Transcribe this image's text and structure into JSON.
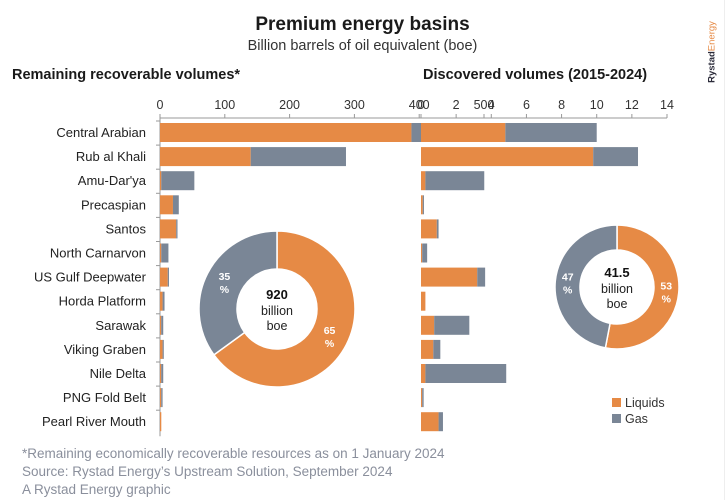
{
  "header": {
    "title": "Premium energy basins",
    "subtitle": "Billion barrels of oil equivalent (boe)",
    "brand_part1": "Rystad",
    "brand_part2": "Energy"
  },
  "colors": {
    "liquids": "#e68a45",
    "gas": "#7a8696",
    "axis": "#999999"
  },
  "footnotes": {
    "line1": "*Remaining economically recoverable resources as on 1 January 2024",
    "line2": "Source: Rystad Energy’s Upstream Solution, September 2024",
    "line3": "A Rystad Energy graphic"
  },
  "chart_data": [
    {
      "type": "bar",
      "orientation": "horizontal-stacked",
      "title": "Remaining recoverable volumes*",
      "xlabel": "",
      "ylabel": "",
      "xlim": [
        0,
        500
      ],
      "xticks": [
        0,
        100,
        200,
        300,
        400,
        500
      ],
      "categories": [
        "Central Arabian",
        "Rub al Khali",
        "Amu-Dar'ya",
        "Precaspian",
        "Santos",
        "North Carnarvon",
        "US Gulf Deepwater",
        "Horda Platform",
        "Sarawak",
        "Viking Graben",
        "Nile Delta",
        "PNG Fold Belt",
        "Pearl River Mouth"
      ],
      "series": [
        {
          "name": "Liquids",
          "values": [
            388,
            140,
            2,
            20,
            25,
            2,
            12,
            4,
            1,
            4,
            1,
            1,
            2
          ]
        },
        {
          "name": "Gas",
          "values": [
            73,
            147,
            51,
            9,
            2,
            11,
            1,
            3,
            4,
            1,
            4,
            3,
            0
          ]
        }
      ],
      "donut": {
        "total_value": "920",
        "total_line1": "billion",
        "total_line2": "boe",
        "slices": [
          {
            "name": "Liquids",
            "percent": 65,
            "label_num": "65",
            "label_sym": "%"
          },
          {
            "name": "Gas",
            "percent": 35,
            "label_num": "35",
            "label_sym": "%"
          }
        ]
      },
      "grid": false
    },
    {
      "type": "bar",
      "orientation": "horizontal-stacked",
      "title": "Discovered volumes (2015-2024)",
      "xlabel": "",
      "ylabel": "",
      "xlim": [
        0,
        14
      ],
      "xticks": [
        0,
        2,
        4,
        6,
        8,
        10,
        12,
        14
      ],
      "categories": [
        "Central Arabian",
        "Rub al Khali",
        "Amu-Dar'ya",
        "Precaspian",
        "Santos",
        "North Carnarvon",
        "US Gulf Deepwater",
        "Horda Platform",
        "Sarawak",
        "Viking Graben",
        "Nile Delta",
        "PNG Fold Belt",
        "Pearl River Mouth"
      ],
      "series": [
        {
          "name": "Liquids",
          "values": [
            4.8,
            9.8,
            0.25,
            0.1,
            0.9,
            0.05,
            3.2,
            0.25,
            0.75,
            0.7,
            0.25,
            0.05,
            1.0
          ]
        },
        {
          "name": "Gas",
          "values": [
            5.2,
            2.55,
            3.35,
            0.05,
            0.1,
            0.3,
            0.45,
            0.0,
            2.0,
            0.4,
            4.6,
            0.1,
            0.25
          ]
        }
      ],
      "donut": {
        "total_value": "41.5",
        "total_line1": "billion",
        "total_line2": "boe",
        "slices": [
          {
            "name": "Liquids",
            "percent": 53,
            "label_num": "53",
            "label_sym": "%"
          },
          {
            "name": "Gas",
            "percent": 47,
            "label_num": "47",
            "label_sym": "%"
          }
        ]
      },
      "legend": {
        "placement": "bottom-right",
        "items": [
          "Liquids",
          "Gas"
        ]
      },
      "grid": false
    }
  ]
}
